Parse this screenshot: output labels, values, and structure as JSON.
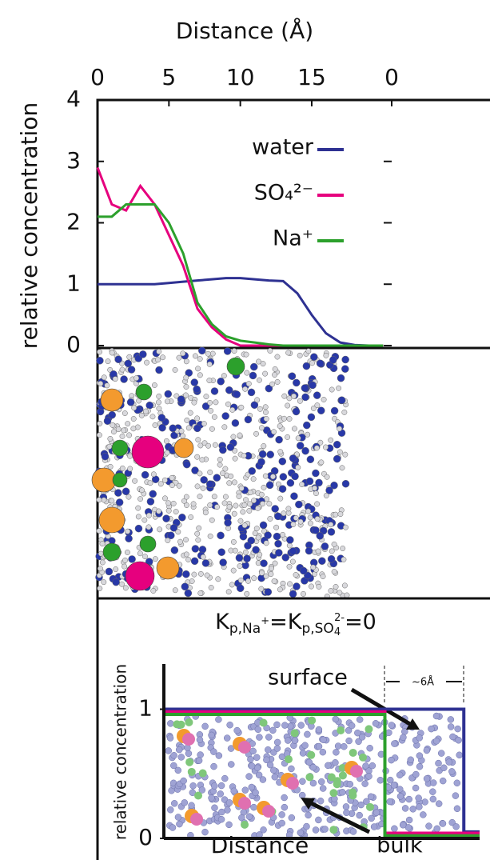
{
  "chart_data": {
    "type": "line",
    "xlabel": "Distance (Å)",
    "ylabel": "relative concentration",
    "x": [
      0,
      1,
      2,
      3,
      4,
      5,
      6,
      7,
      8,
      9,
      10,
      11,
      12,
      13,
      14,
      15,
      16,
      17,
      18,
      19,
      20
    ],
    "xlim": [
      0,
      20.6
    ],
    "xticks": [
      0,
      5,
      10,
      15
    ],
    "x2lim": [
      20.6,
      0
    ],
    "x2ticks": [
      0
    ],
    "ylim": [
      0,
      4
    ],
    "yticks": [
      0,
      1,
      2,
      3,
      4
    ],
    "series": [
      {
        "name": "water",
        "color": "#2e3192",
        "values": [
          1.0,
          1.0,
          1.0,
          1.0,
          1.0,
          1.02,
          1.04,
          1.06,
          1.08,
          1.1,
          1.1,
          1.08,
          1.06,
          1.05,
          0.85,
          0.5,
          0.2,
          0.05,
          0.01,
          0,
          0
        ]
      },
      {
        "name": "SO₄²⁻",
        "color": "#e6007e",
        "values": [
          2.9,
          2.3,
          2.2,
          2.6,
          2.3,
          1.8,
          1.3,
          0.6,
          0.3,
          0.1,
          0,
          0,
          0,
          0,
          0,
          0,
          0,
          0,
          0,
          0,
          0
        ]
      },
      {
        "name": "Na⁺",
        "color": "#2ca02c",
        "values": [
          2.1,
          2.1,
          2.3,
          2.3,
          2.3,
          2.0,
          1.5,
          0.7,
          0.35,
          0.15,
          0.08,
          0.05,
          0.02,
          0,
          0,
          0,
          0,
          0,
          0,
          0,
          0
        ]
      }
    ]
  },
  "schematic": {
    "title": {
      "k1": "K",
      "sub1": "p,Na",
      "sup1": "+",
      "k2": "=K",
      "sub2": "p,SO",
      "sub3": "4",
      "sup3": "2-",
      "end": "=0"
    },
    "ylabel": "relative concentration",
    "xlabel": "Distance",
    "ylim": [
      0,
      1.35
    ],
    "yticks": [
      0,
      1
    ],
    "xlim": [
      0,
      1
    ],
    "x": [
      0,
      0.7,
      0.7,
      0.95,
      0.95,
      1
    ],
    "series": [
      {
        "color": "#2e3192",
        "values": [
          1,
          1,
          1,
          1,
          0.05,
          0.05
        ]
      },
      {
        "color": "#e6007e",
        "values": [
          0.98,
          0.98,
          0.04,
          0.04,
          0.04,
          0.04
        ]
      },
      {
        "color": "#2ca02c",
        "values": [
          0.96,
          0.96,
          0.02,
          0.02,
          0.02,
          0.02
        ]
      }
    ],
    "surface": "surface",
    "bulk": "bulk",
    "width_label": "~6Å"
  }
}
